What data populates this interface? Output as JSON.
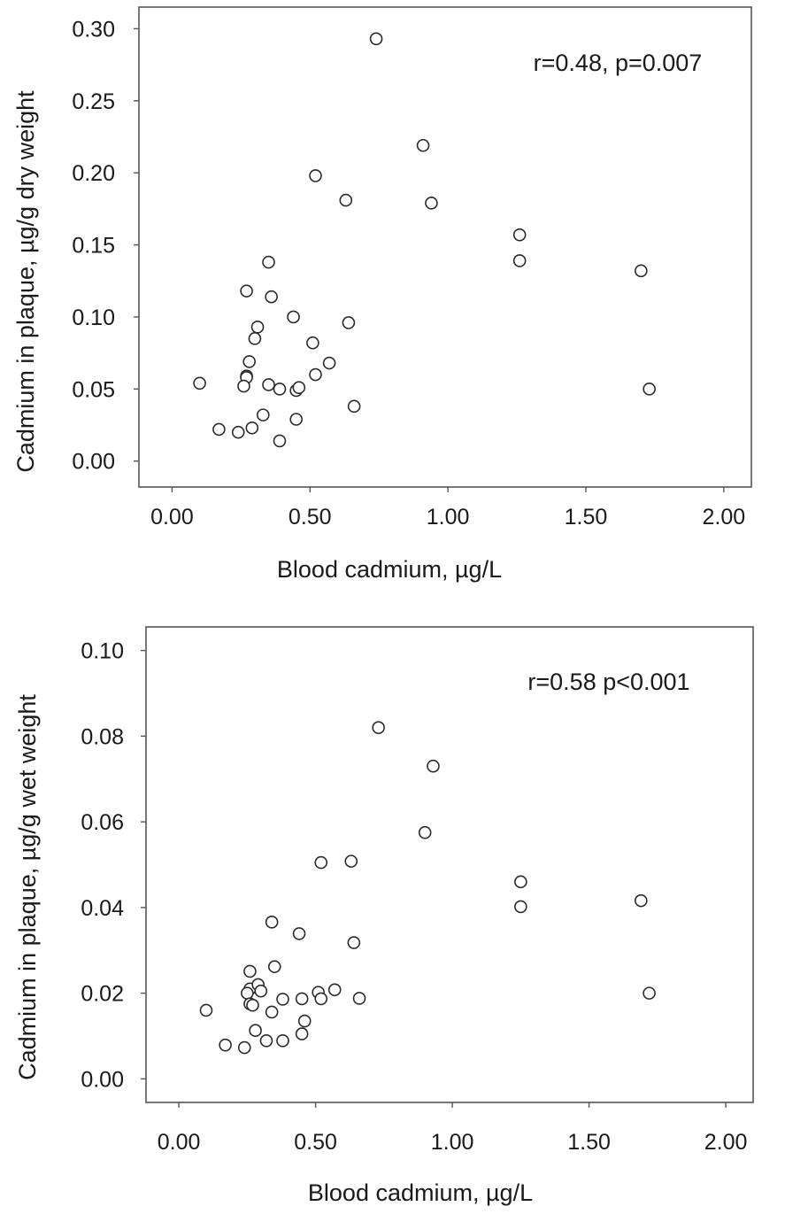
{
  "chart_data": [
    {
      "type": "scatter",
      "xlabel": "Blood cadmium, µg/L",
      "ylabel": "Cadmium in plaque, µg/g dry  weight",
      "annotation": "r=0.48, p=0.007",
      "xlim": [
        -0.12,
        2.1
      ],
      "ylim": [
        -0.018,
        0.315
      ],
      "x_ticks": [
        0.0,
        0.5,
        1.0,
        1.5,
        2.0
      ],
      "x_tick_labels": [
        "0.00",
        "0.50",
        "1.00",
        "1.50",
        "2.00"
      ],
      "y_ticks": [
        0.0,
        0.05,
        0.1,
        0.15,
        0.2,
        0.25,
        0.3
      ],
      "y_tick_labels": [
        "0.00",
        "0.05",
        "0.10",
        "0.15",
        "0.20",
        "0.25",
        "0.30"
      ],
      "points": [
        [
          0.74,
          0.293
        ],
        [
          0.91,
          0.219
        ],
        [
          0.52,
          0.198
        ],
        [
          0.63,
          0.181
        ],
        [
          0.94,
          0.179
        ],
        [
          1.26,
          0.157
        ],
        [
          1.26,
          0.139
        ],
        [
          1.7,
          0.132
        ],
        [
          0.35,
          0.138
        ],
        [
          0.27,
          0.118
        ],
        [
          0.36,
          0.114
        ],
        [
          0.44,
          0.1
        ],
        [
          0.64,
          0.096
        ],
        [
          0.31,
          0.093
        ],
        [
          0.3,
          0.085
        ],
        [
          0.51,
          0.082
        ],
        [
          0.28,
          0.069
        ],
        [
          0.57,
          0.068
        ],
        [
          0.52,
          0.06
        ],
        [
          0.27,
          0.059
        ],
        [
          0.27,
          0.058
        ],
        [
          0.1,
          0.054
        ],
        [
          0.26,
          0.052
        ],
        [
          0.35,
          0.053
        ],
        [
          0.39,
          0.05
        ],
        [
          0.45,
          0.049
        ],
        [
          0.46,
          0.051
        ],
        [
          1.73,
          0.05
        ],
        [
          0.66,
          0.038
        ],
        [
          0.33,
          0.032
        ],
        [
          0.45,
          0.029
        ],
        [
          0.17,
          0.022
        ],
        [
          0.29,
          0.023
        ],
        [
          0.24,
          0.02
        ],
        [
          0.39,
          0.014
        ]
      ]
    },
    {
      "type": "scatter",
      "xlabel": "Blood cadmium, µg/L",
      "ylabel": "Cadmium in plaque, µg/g wet weight",
      "annotation": "r=0.58 p<0.001",
      "xlim": [
        -0.12,
        2.1
      ],
      "ylim": [
        -0.0055,
        0.1055
      ],
      "x_ticks": [
        0.0,
        0.5,
        1.0,
        1.5,
        2.0
      ],
      "x_tick_labels": [
        "0.00",
        "0.50",
        "1.00",
        "1.50",
        "2.00"
      ],
      "y_ticks": [
        0.0,
        0.02,
        0.04,
        0.06,
        0.08,
        0.1
      ],
      "y_tick_labels": [
        "0.00",
        "0.02",
        "0.04",
        "0.06",
        "0.08",
        "0.10"
      ],
      "points": [
        [
          0.73,
          0.082
        ],
        [
          0.93,
          0.073
        ],
        [
          0.9,
          0.0575
        ],
        [
          0.52,
          0.0505
        ],
        [
          0.63,
          0.0508
        ],
        [
          1.25,
          0.046
        ],
        [
          1.25,
          0.0402
        ],
        [
          1.69,
          0.0416
        ],
        [
          0.34,
          0.0366
        ],
        [
          0.44,
          0.0339
        ],
        [
          0.64,
          0.0318
        ],
        [
          0.35,
          0.0262
        ],
        [
          0.26,
          0.0251
        ],
        [
          0.26,
          0.021
        ],
        [
          0.29,
          0.022
        ],
        [
          0.25,
          0.02
        ],
        [
          0.3,
          0.0205
        ],
        [
          0.57,
          0.0208
        ],
        [
          0.51,
          0.0202
        ],
        [
          1.72,
          0.02
        ],
        [
          0.26,
          0.0175
        ],
        [
          0.27,
          0.0172
        ],
        [
          0.38,
          0.0186
        ],
        [
          0.45,
          0.0187
        ],
        [
          0.52,
          0.0187
        ],
        [
          0.66,
          0.0188
        ],
        [
          0.1,
          0.016
        ],
        [
          0.34,
          0.0156
        ],
        [
          0.46,
          0.0135
        ],
        [
          0.28,
          0.0113
        ],
        [
          0.45,
          0.0105
        ],
        [
          0.32,
          0.0089
        ],
        [
          0.38,
          0.0089
        ],
        [
          0.17,
          0.0079
        ],
        [
          0.24,
          0.0073
        ]
      ]
    }
  ]
}
